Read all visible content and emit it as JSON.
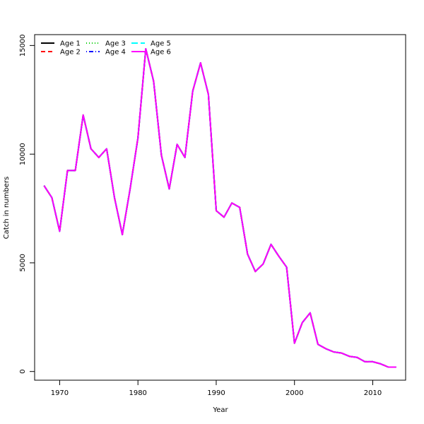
{
  "chart_data": {
    "type": "line",
    "title": "",
    "xlabel": "Year",
    "ylabel": "Catch in numbers",
    "xlim": [
      1966.8,
      2014.2
    ],
    "ylim": [
      -400,
      15500
    ],
    "xticks": [
      1970,
      1980,
      1990,
      2000,
      2010
    ],
    "yticks": [
      0,
      5000,
      10000,
      15000
    ],
    "xtick_labels": [
      "1970",
      "1980",
      "1990",
      "2000",
      "2010"
    ],
    "ytick_labels": [
      "0",
      "5000",
      "10000",
      "15000"
    ],
    "grid": false,
    "legend_position": "top-left",
    "x": [
      1968,
      1969,
      1970,
      1971,
      1972,
      1973,
      1974,
      1975,
      1976,
      1977,
      1978,
      1979,
      1980,
      1981,
      1982,
      1983,
      1984,
      1985,
      1986,
      1987,
      1988,
      1989,
      1990,
      1991,
      1992,
      1993,
      1994,
      1995,
      1996,
      1997,
      1998,
      1999,
      2000,
      2001,
      2002,
      2003,
      2004,
      2005,
      2006,
      2007,
      2008,
      2009,
      2010,
      2011,
      2012,
      2013
    ],
    "series": [
      {
        "name": "Age 1",
        "color": "#000000",
        "dash": "solid",
        "values": [
          8550,
          8000,
          6450,
          9250,
          9250,
          11800,
          10250,
          9850,
          10250,
          8000,
          6300,
          8400,
          10750,
          14850,
          13350,
          9950,
          8400,
          10450,
          9850,
          12900,
          14200,
          12750,
          7400,
          7100,
          7750,
          7550,
          5400,
          4600,
          4950,
          5850,
          5300,
          4800,
          1300,
          2250,
          2700,
          1250,
          1050,
          900,
          850,
          700,
          650,
          450,
          450,
          350,
          200,
          200
        ]
      },
      {
        "name": "Age 2",
        "color": "#ff0000",
        "dash": "dashed",
        "values": [
          8550,
          8000,
          6450,
          9250,
          9250,
          11800,
          10250,
          9850,
          10250,
          8000,
          6300,
          8400,
          10750,
          14850,
          13350,
          9950,
          8400,
          10450,
          9850,
          12900,
          14200,
          12750,
          7400,
          7100,
          7750,
          7550,
          5400,
          4600,
          4950,
          5850,
          5300,
          4800,
          1300,
          2250,
          2700,
          1250,
          1050,
          900,
          850,
          700,
          650,
          450,
          450,
          350,
          200,
          200
        ]
      },
      {
        "name": "Age 3",
        "color": "#00cd00",
        "dash": "dotted",
        "values": [
          8550,
          8000,
          6450,
          9250,
          9250,
          11800,
          10250,
          9850,
          10250,
          8000,
          6300,
          8400,
          10750,
          14850,
          13350,
          9950,
          8400,
          10450,
          9850,
          12900,
          14200,
          12750,
          7400,
          7100,
          7750,
          7550,
          5400,
          4600,
          4950,
          5850,
          5300,
          4800,
          1300,
          2250,
          2700,
          1250,
          1050,
          900,
          850,
          700,
          650,
          450,
          450,
          350,
          200,
          200
        ]
      },
      {
        "name": "Age 4",
        "color": "#0000ff",
        "dash": "dotdash",
        "values": [
          8550,
          8000,
          6450,
          9250,
          9250,
          11800,
          10250,
          9850,
          10250,
          8000,
          6300,
          8400,
          10750,
          14850,
          13350,
          9950,
          8400,
          10450,
          9850,
          12900,
          14200,
          12750,
          7400,
          7100,
          7750,
          7550,
          5400,
          4600,
          4950,
          5850,
          5300,
          4800,
          1300,
          2250,
          2700,
          1250,
          1050,
          900,
          850,
          700,
          650,
          450,
          450,
          350,
          200,
          200
        ]
      },
      {
        "name": "Age 5",
        "color": "#00ffff",
        "dash": "longdash",
        "values": [
          8550,
          8000,
          6450,
          9250,
          9250,
          11800,
          10250,
          9850,
          10250,
          8000,
          6300,
          8400,
          10750,
          14850,
          13350,
          9950,
          8400,
          10450,
          9850,
          12900,
          14200,
          12750,
          7400,
          7100,
          7750,
          7550,
          5400,
          4600,
          4950,
          5850,
          5300,
          4800,
          1300,
          2250,
          2700,
          1250,
          1050,
          900,
          850,
          700,
          650,
          450,
          450,
          350,
          200,
          200
        ]
      },
      {
        "name": "Age 6",
        "color": "#ff00ff",
        "dash": "solid",
        "values": [
          8550,
          8000,
          6450,
          9250,
          9250,
          11800,
          10250,
          9850,
          10250,
          8000,
          6300,
          8400,
          10750,
          14850,
          13350,
          9950,
          8400,
          10450,
          9850,
          12900,
          14200,
          12750,
          7400,
          7100,
          7750,
          7550,
          5400,
          4600,
          4950,
          5850,
          5300,
          4800,
          1300,
          2250,
          2700,
          1250,
          1050,
          900,
          850,
          700,
          650,
          450,
          450,
          350,
          200,
          200
        ]
      }
    ]
  }
}
